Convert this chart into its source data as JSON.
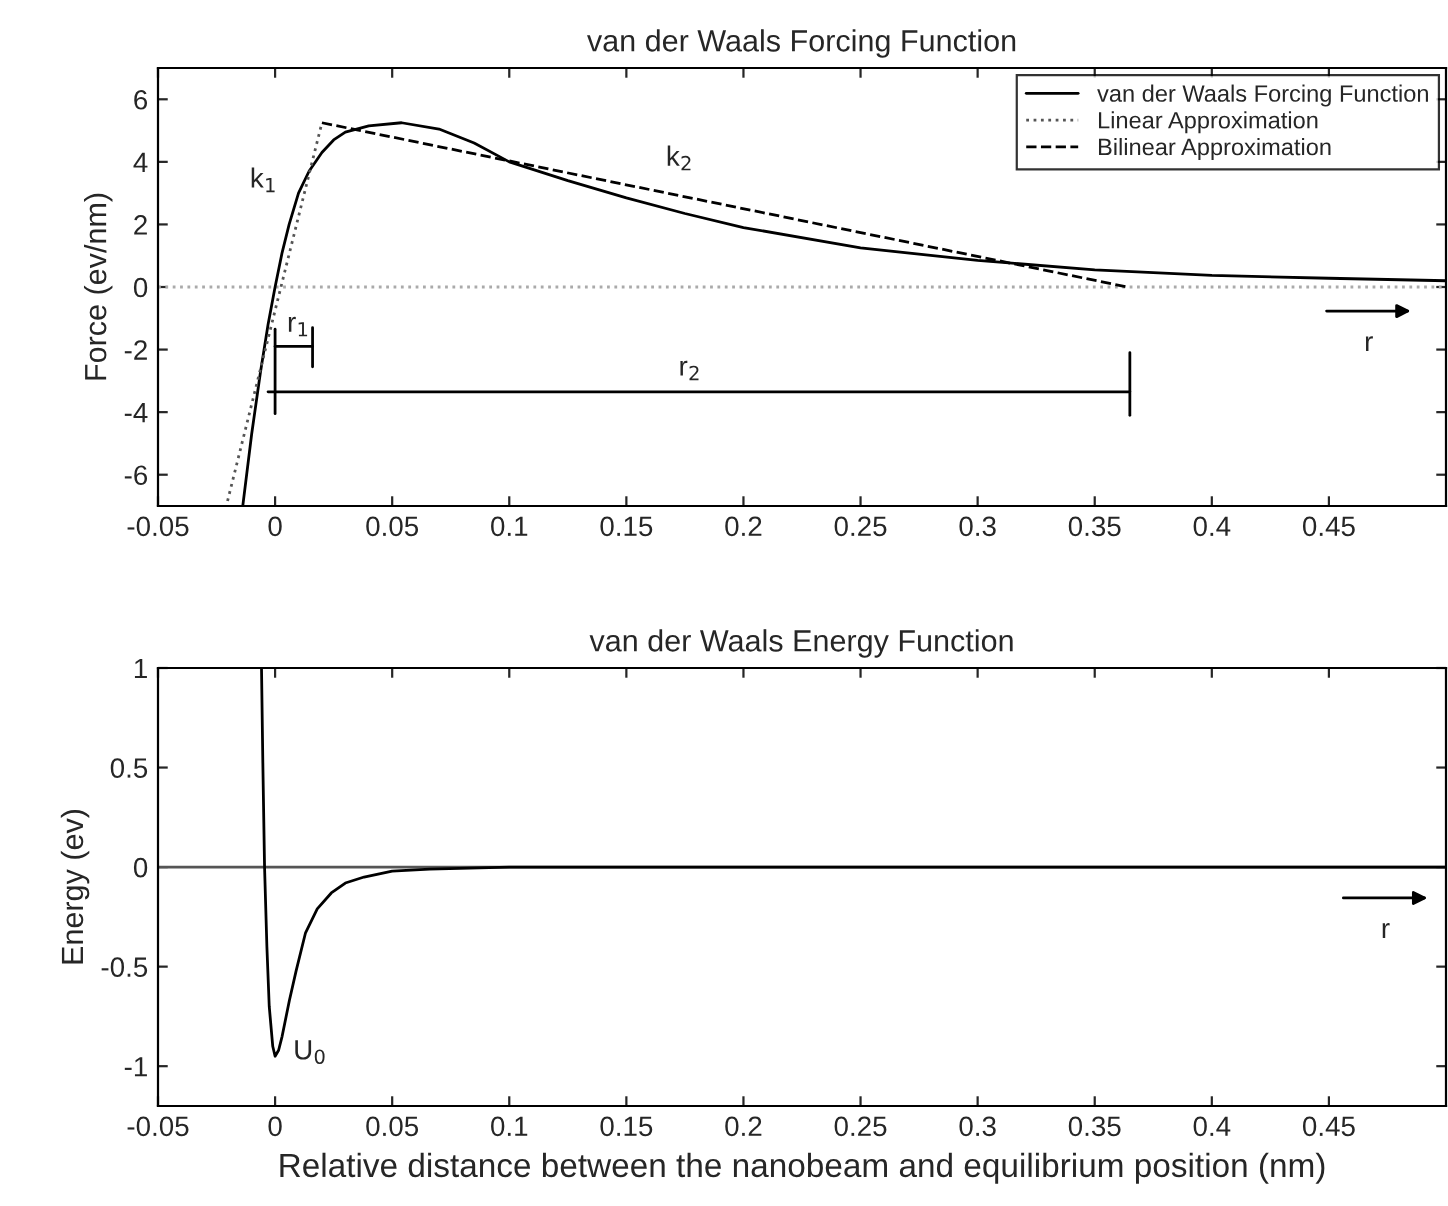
{
  "chart_data": [
    {
      "type": "line",
      "title": "van der Waals Forcing Function",
      "ylabel": "Force (ev/nm)",
      "xlim": [
        -0.05,
        0.5
      ],
      "xticks": [
        -0.05,
        0,
        0.05,
        0.1,
        0.15,
        0.2,
        0.25,
        0.3,
        0.35,
        0.4,
        0.45
      ],
      "ylim": [
        -7,
        7
      ],
      "yticks": [
        -6,
        -4,
        -2,
        0,
        2,
        4,
        6
      ],
      "grid": false,
      "legend": "top right",
      "marker": "none",
      "series": [
        {
          "name": "van der Waals Forcing Function",
          "color": "#000000",
          "line_style": "solid",
          "x": [
            -0.0138,
            -0.01,
            -0.0063,
            -0.003,
            0,
            0.003,
            0.006,
            0.01,
            0.0145,
            0.02,
            0.025,
            0.03,
            0.04,
            0.054,
            0.07,
            0.085,
            0.1,
            0.125,
            0.15,
            0.175,
            0.2,
            0.25,
            0.3,
            0.35,
            0.4,
            0.45,
            0.5
          ],
          "values": [
            -7,
            -4.7,
            -2.75,
            -1.2,
            0,
            1.1,
            2,
            3,
            3.7,
            4.3,
            4.7,
            4.95,
            5.15,
            5.25,
            5.05,
            4.6,
            4.0,
            3.4,
            2.85,
            2.35,
            1.9,
            1.25,
            0.85,
            0.55,
            0.37,
            0.28,
            0.2
          ]
        },
        {
          "name": "Linear Approximation",
          "color": "#555555",
          "line_style": "dotted",
          "x": [
            -0.0203,
            0.02
          ],
          "values": [
            -6.84,
            5.25
          ]
        },
        {
          "name": "Bilinear Approximation",
          "color": "#000000",
          "line_style": "dashed",
          "x": [
            0.02,
            0.364
          ],
          "values": [
            5.25,
            0
          ]
        },
        {
          "color": "#000000",
          "line_style": "solid",
          "x": [
            0,
            0.016
          ],
          "values": [
            -1.9,
            -1.9
          ]
        },
        {
          "color": "#000000",
          "line_style": "solid",
          "x": [
            0,
            0
          ],
          "values": [
            -1.35,
            -4.05
          ]
        },
        {
          "color": "#000000",
          "line_style": "solid",
          "x": [
            0.016,
            0.016
          ],
          "values": [
            -1.3,
            -2.55
          ]
        },
        {
          "color": "#000000",
          "line_style": "solid",
          "x": [
            -0.003,
            0.365
          ],
          "values": [
            -3.35,
            -3.35
          ]
        },
        {
          "color": "#000000",
          "line_style": "solid",
          "x": [
            0.365,
            0.365
          ],
          "values": [
            -2.1,
            -4.1
          ]
        }
      ],
      "ref_lines": [
        {
          "axis": "y",
          "value": 0,
          "color": "#aaaaaa",
          "line_style": "dotted"
        }
      ],
      "annotations": [
        "k$_{1}$",
        "k$_{2}$",
        "r$_{1}$",
        "r$_{2}$",
        "r"
      ]
    },
    {
      "type": "line",
      "title": "van der Waals Energy Function",
      "ylabel": "Energy (ev)",
      "xlabel": "Relative distance between the nanobeam and equilibrium position (nm)",
      "xlim": [
        -0.05,
        0.5
      ],
      "xticks": [
        -0.05,
        0,
        0.05,
        0.1,
        0.15,
        0.2,
        0.25,
        0.3,
        0.35,
        0.4,
        0.45
      ],
      "ylim": [
        -1.2,
        1
      ],
      "yticks": [
        -1,
        -0.5,
        0,
        0.5,
        1
      ],
      "grid": false,
      "marker": "none",
      "series": [
        {
          "color": "#000000",
          "line_style": "solid",
          "x": [
            -0.0058,
            -0.0052,
            -0.0045,
            -0.0035,
            -0.0025,
            -0.001,
            0,
            0.0015,
            0.003,
            0.0061,
            0.009,
            0.013,
            0.018,
            0.024,
            0.03,
            0.038,
            0.05,
            0.066,
            0.1,
            0.5
          ],
          "values": [
            1,
            0.5,
            0,
            -0.4,
            -0.7,
            -0.9,
            -0.95,
            -0.92,
            -0.85,
            -0.67,
            -0.52,
            -0.33,
            -0.21,
            -0.13,
            -0.08,
            -0.05,
            -0.02,
            -0.01,
            0,
            0
          ]
        }
      ],
      "ref_lines": [
        {
          "axis": "y",
          "value": 0,
          "color": "#555555",
          "line_style": "solid"
        }
      ],
      "annotations": [
        "U$_{0}$",
        "r"
      ]
    }
  ]
}
